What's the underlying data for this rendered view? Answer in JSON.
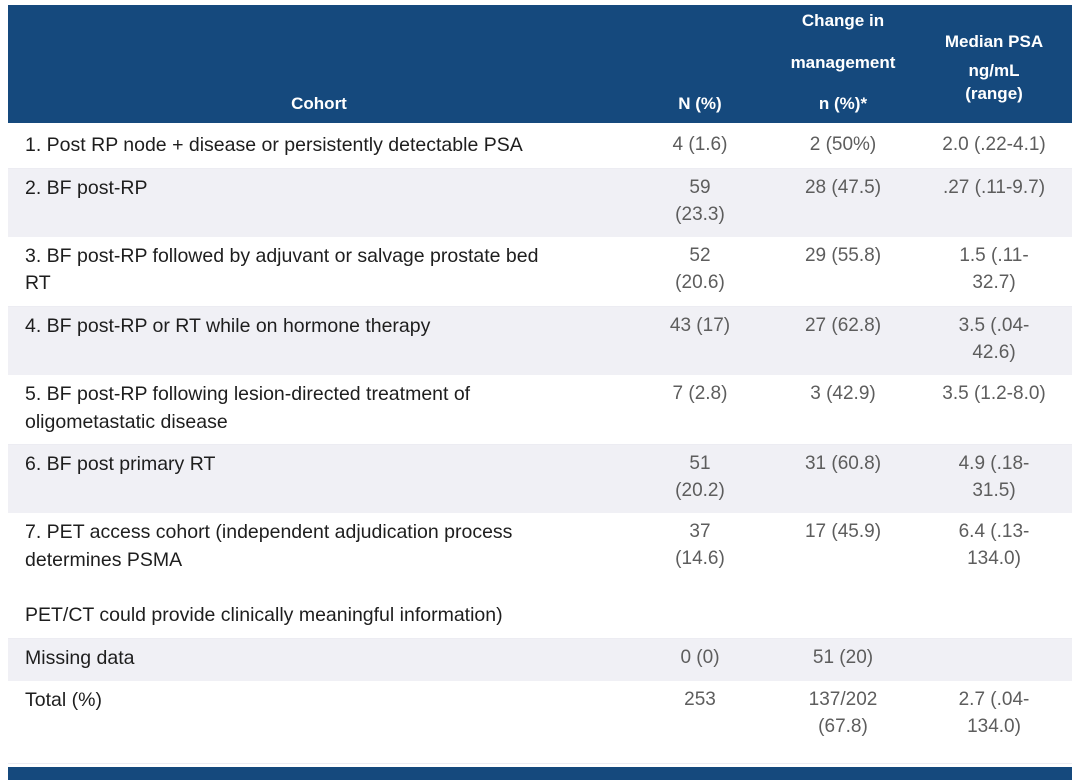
{
  "colors": {
    "header_bg": "#15497d",
    "alt_row_bg": "#f0f0f5",
    "header_text": "#ffffff",
    "cohort_text": "#1e1e1e",
    "value_text": "#5d5d5d"
  },
  "header": {
    "cohort_label": "Cohort",
    "n_label": "N (%)",
    "change_line1": "Change in",
    "change_line2": "management",
    "change_line3": "n (%)*",
    "median_line1": "Median PSA",
    "median_line2": "ng/mL\n(range)"
  },
  "rows": [
    {
      "cohort": "1. Post RP node + disease or persistently detectable PSA",
      "n": "4 (1.6)",
      "change": "2 (50%)",
      "median": "2.0 (.22-4.1)"
    },
    {
      "cohort": "2. BF post-RP",
      "n": "59\n(23.3)",
      "change": "28 (47.5)",
      "median": ".27 (.11-9.7)"
    },
    {
      "cohort": "3. BF post-RP followed by adjuvant or salvage prostate bed\nRT",
      "n": "52\n(20.6)",
      "change": "29 (55.8)",
      "median": "1.5 (.11-\n32.7)"
    },
    {
      "cohort": "4. BF post-RP or RT while on hormone therapy",
      "n": "43 (17)",
      "change": "27 (62.8)",
      "median": "3.5 (.04-\n42.6)"
    },
    {
      "cohort": "5. BF post-RP following lesion-directed treatment of\noligometastatic disease",
      "n": "7 (2.8)",
      "change": "3 (42.9)",
      "median": "3.5 (1.2-8.0)"
    },
    {
      "cohort": "6. BF post primary RT",
      "n": "51\n(20.2)",
      "change": "31 (60.8)",
      "median": "4.9 (.18-\n31.5)"
    },
    {
      "cohort": "7. PET access cohort (independent adjudication process\ndetermines PSMA\n\nPET/CT could provide clinically meaningful information)",
      "n": "37\n(14.6)",
      "change": "17 (45.9)",
      "median": "6.4 (.13-\n134.0)"
    },
    {
      "cohort": "Missing data",
      "n": "0 (0)",
      "change": "51 (20)",
      "median": ""
    },
    {
      "cohort": "Total (%)",
      "n": "253",
      "change": "137/202\n(67.8)",
      "median": "2.7 (.04-\n134.0)"
    }
  ]
}
